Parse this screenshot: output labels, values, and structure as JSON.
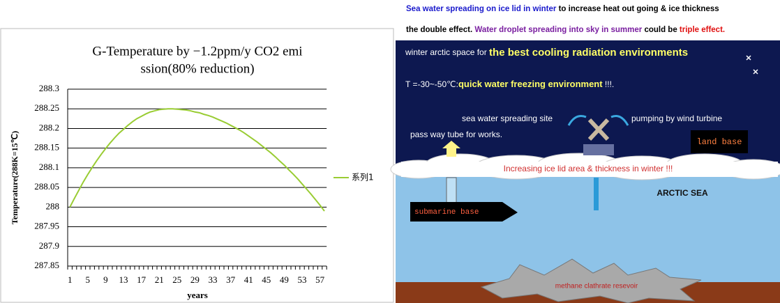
{
  "chart_data": {
    "type": "line",
    "title": [
      "G-Temperature by −1.2ppm/y CO2 emi",
      "ssion(80% reduction)"
    ],
    "x_label": "years",
    "y_label": "Temperature(288K=15℃)",
    "categories": [
      1,
      null,
      null,
      null,
      5,
      null,
      null,
      null,
      9,
      null,
      null,
      null,
      13,
      null,
      null,
      null,
      17,
      null,
      null,
      null,
      21,
      null,
      null,
      null,
      25,
      null,
      null,
      null,
      29,
      null,
      null,
      null,
      33,
      null,
      null,
      null,
      37,
      null,
      null,
      null,
      41,
      null,
      null,
      null,
      45,
      null,
      null,
      null,
      49,
      null,
      null,
      null,
      53,
      null,
      null,
      null,
      57,
      null
    ],
    "series": [
      {
        "name": "系列1",
        "color": "#99cc33",
        "values": [
          288,
          288.022,
          288.043,
          288.064,
          288.083,
          288.101,
          288.118,
          288.134,
          288.149,
          288.163,
          288.176,
          288.188,
          288.198,
          288.208,
          288.217,
          288.225,
          288.231,
          288.237,
          288.242,
          288.245,
          288.248,
          288.249,
          288.25,
          288.25,
          288.249,
          288.248,
          288.247,
          288.245,
          288.242,
          288.24,
          288.236,
          288.233,
          288.229,
          288.224,
          288.219,
          288.214,
          288.208,
          288.202,
          288.196,
          288.189,
          288.181,
          288.173,
          288.165,
          288.156,
          288.147,
          288.138,
          288.128,
          288.117,
          288.107,
          288.095,
          288.084,
          288.072,
          288.059,
          288.046,
          288.033,
          288.019,
          288.005,
          287.99
        ]
      }
    ],
    "ylim": [
      287.85,
      288.3
    ],
    "yticks": [
      287.85,
      287.9,
      287.95,
      288,
      288.05,
      288.1,
      288.15,
      288.2,
      288.25,
      288.3
    ],
    "grid": true,
    "legend": "right"
  },
  "diagram": {
    "header": [
      [
        "Sea water spreading on ice lid in winter",
        " to increase heat out going & ice thickness"
      ],
      [
        "the double effect. ",
        "Water droplet spreading into sky in summer",
        " could be ",
        "triple effect."
      ]
    ],
    "sky_line1": [
      "winter arctic space for ",
      "the best cooling radiation environments"
    ],
    "sky_line2": [
      "T =-30~-50℃:",
      "quick water freezing environment",
      "   !!!."
    ],
    "spreading_site": "sea water spreading site",
    "pumping": "pumping by wind turbine",
    "pass_way": "pass way tube for works.",
    "land_base": "land base",
    "ice_lid": "Increasing ice lid area & thickness in winter !!!",
    "sea": "ARCTIC SEA",
    "submarine": "submarine base",
    "methane": "methane clathrate resevoir"
  }
}
